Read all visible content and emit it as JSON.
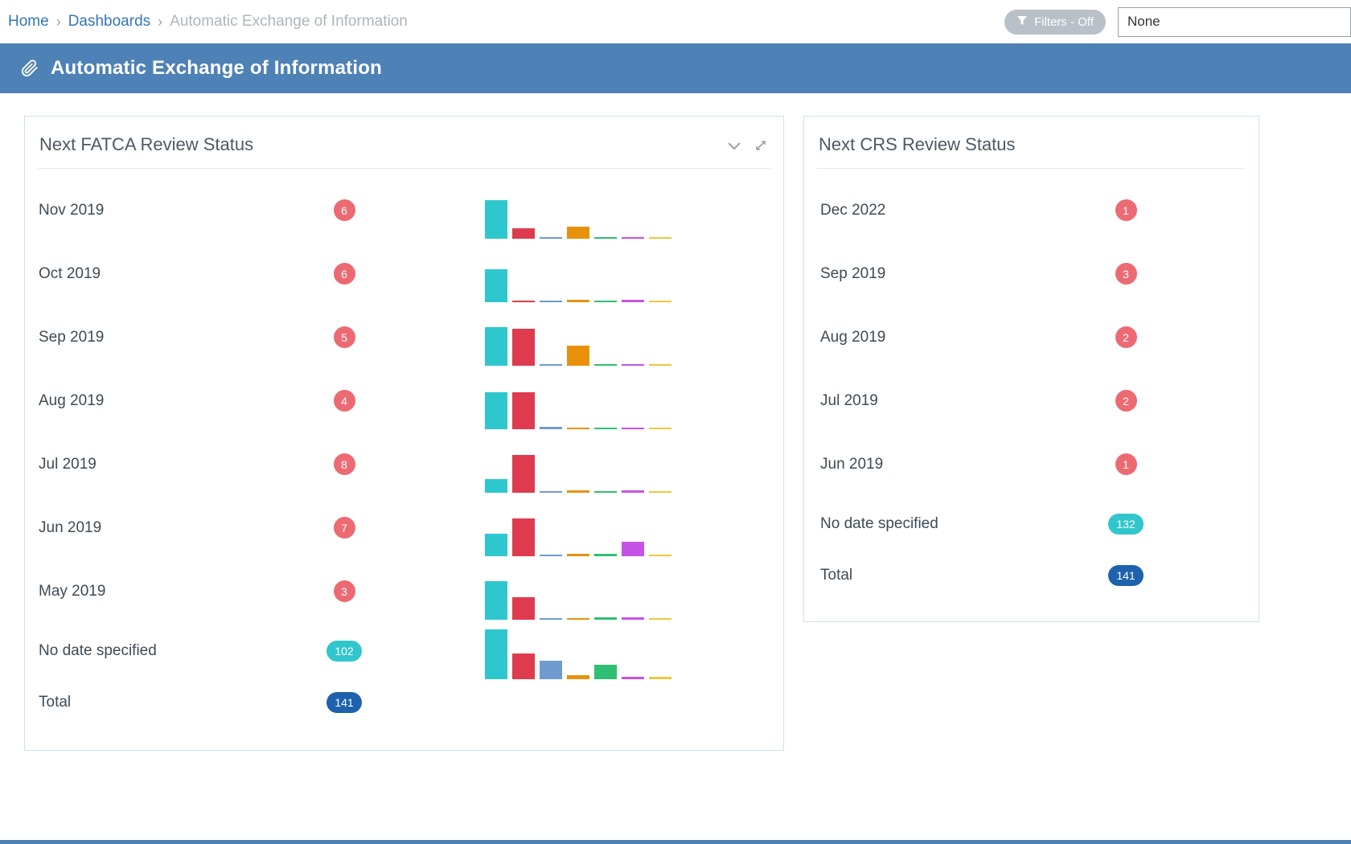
{
  "breadcrumb": {
    "separator": "›",
    "items": [
      {
        "label": "Home"
      },
      {
        "label": "Dashboards"
      },
      {
        "label": "Automatic Exchange of Information"
      }
    ]
  },
  "toolbar": {
    "filters_label": "Filters - Off",
    "filter_value": "None"
  },
  "header": {
    "title": "Automatic Exchange of Information"
  },
  "icons": {
    "header_icon": "paperclip",
    "filters_icon": "funnel",
    "card_collapse_icon": "chevron-down",
    "card_expand_icon": "expand-arrows"
  },
  "colors": {
    "header_bg": "#4e81b6",
    "link_blue": "#3277b8",
    "badge_red": "#ec6a72",
    "badge_teal": "#31c6cd",
    "badge_blue": "#1e62ae",
    "bar_palette": [
      "#2fc7ce",
      "#df3b4f",
      "#6f9bd1",
      "#e8920b",
      "#2ebf72",
      "#c653e8",
      "#edc83f"
    ]
  },
  "fatca": {
    "title": "Next FATCA Review Status",
    "rows": [
      {
        "label": "Nov 2019",
        "count": "6",
        "badge": "red",
        "bars": [
          48,
          13,
          2,
          15,
          2,
          2,
          2
        ]
      },
      {
        "label": "Oct 2019",
        "count": "6",
        "badge": "red",
        "bars": [
          41,
          2,
          2,
          3,
          2,
          3,
          2
        ]
      },
      {
        "label": "Sep 2019",
        "count": "5",
        "badge": "red",
        "bars": [
          48,
          46,
          2,
          25,
          2,
          2,
          2
        ]
      },
      {
        "label": "Aug 2019",
        "count": "4",
        "badge": "red",
        "bars": [
          46,
          46,
          3,
          2,
          2,
          2,
          2
        ]
      },
      {
        "label": "Jul 2019",
        "count": "8",
        "badge": "red",
        "bars": [
          17,
          47,
          2,
          3,
          2,
          3,
          2
        ]
      },
      {
        "label": "Jun 2019",
        "count": "7",
        "badge": "red",
        "bars": [
          28,
          47,
          2,
          3,
          3,
          18,
          2
        ]
      },
      {
        "label": "May 2019",
        "count": "3",
        "badge": "red",
        "bars": [
          48,
          28,
          2,
          2,
          3,
          3,
          2
        ]
      },
      {
        "label": "No date specified",
        "count": "102",
        "badge": "teal",
        "bars": [
          62,
          32,
          23,
          5,
          18,
          3,
          3
        ]
      },
      {
        "label": "Total",
        "count": "141",
        "badge": "blue"
      }
    ]
  },
  "crs": {
    "title": "Next CRS Review Status",
    "rows": [
      {
        "label": "Dec 2022",
        "count": "1",
        "badge": "red"
      },
      {
        "label": "Sep 2019",
        "count": "3",
        "badge": "red"
      },
      {
        "label": "Aug 2019",
        "count": "2",
        "badge": "red"
      },
      {
        "label": "Jul 2019",
        "count": "2",
        "badge": "red"
      },
      {
        "label": "Jun 2019",
        "count": "1",
        "badge": "red"
      },
      {
        "label": "No date specified",
        "count": "132",
        "badge": "teal"
      },
      {
        "label": "Total",
        "count": "141",
        "badge": "blue"
      }
    ]
  }
}
